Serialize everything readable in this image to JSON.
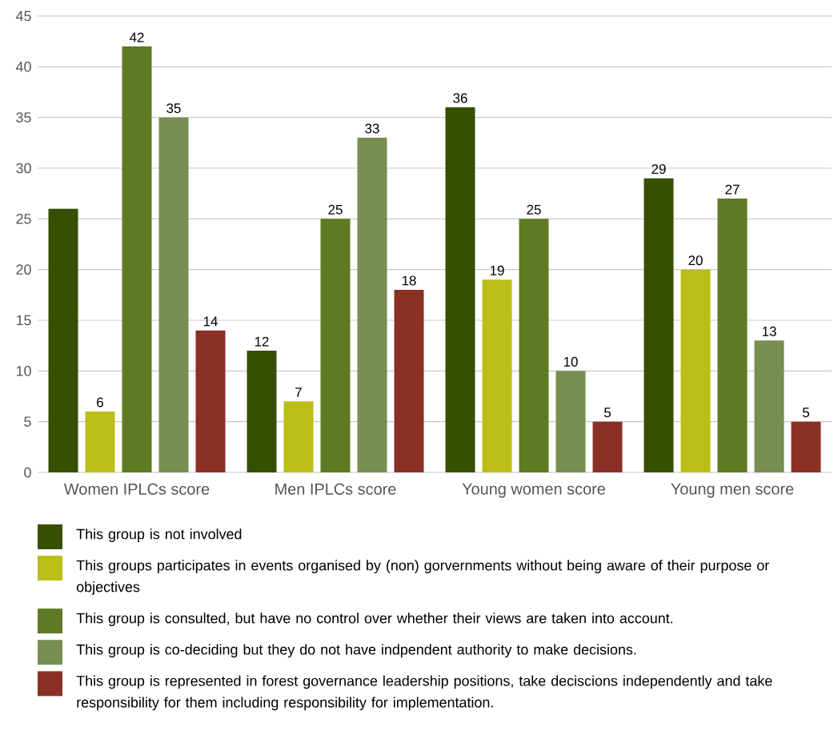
{
  "chart_data": {
    "type": "bar",
    "categories": [
      "Women IPLCs score",
      "Men IPLCs score",
      "Young women score",
      "Young men score"
    ],
    "series": [
      {
        "name": "This group is not involved",
        "color": "#374f00",
        "values": [
          26,
          12,
          36,
          29
        ],
        "value_labels": [
          null,
          "12",
          "36",
          "29"
        ]
      },
      {
        "name": "This groups participates in events organised by (non) gorvernments without being aware of their purpose or objectives",
        "color": "#bdbd19",
        "values": [
          6,
          7,
          19,
          20
        ],
        "value_labels": [
          "6",
          "7",
          "19",
          "20"
        ]
      },
      {
        "name": "This group is consulted, but have no control over whether their views are taken into account.",
        "color": "#5e7a22",
        "values": [
          42,
          25,
          25,
          27
        ],
        "value_labels": [
          "42",
          "25",
          "25",
          "27"
        ]
      },
      {
        "name": "This group is co-deciding but they do not have indpendent authority to make decisions.",
        "color": "#778f50",
        "values": [
          35,
          33,
          10,
          13
        ],
        "value_labels": [
          "35",
          "33",
          "10",
          "13"
        ]
      },
      {
        "name": "This group is represented in forest governance leadership positions, take deciscions independently and take responsibility for them including responsibility for implementation.",
        "color": "#8b3025",
        "values": [
          14,
          18,
          5,
          5
        ],
        "value_labels": [
          "14",
          "18",
          "5",
          "5"
        ]
      }
    ],
    "ylim": [
      0,
      45
    ],
    "yticks": [
      0,
      5,
      10,
      15,
      20,
      25,
      30,
      35,
      40,
      45
    ],
    "grid": "y",
    "legend": "bottom"
  }
}
